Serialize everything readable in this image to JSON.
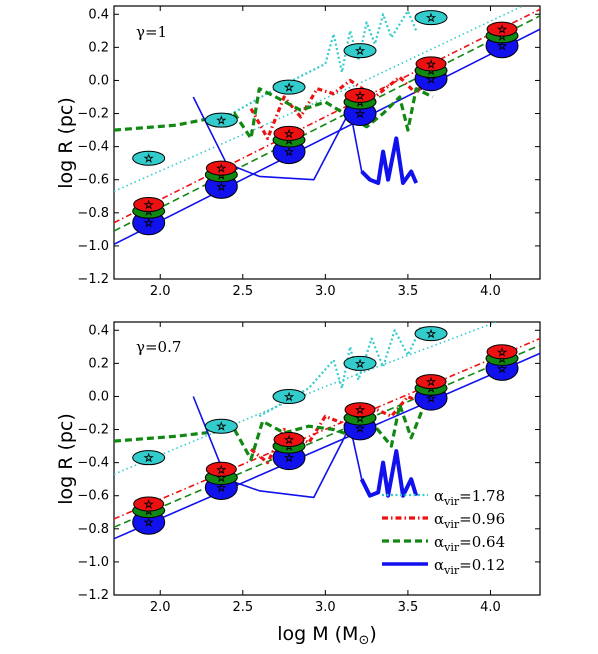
{
  "chart_data": {
    "type": "line",
    "figure_note": "",
    "xlabel_text": "log M (M",
    "xlabel_sub": "⊙",
    "xlabel_close": ")",
    "ylabel": "log R (pc)",
    "xlim": [
      1.72,
      4.3
    ],
    "ylim": [
      -1.2,
      0.45
    ],
    "xticks": [
      "2.0",
      "2.5",
      "3.0",
      "3.5",
      "4.0"
    ],
    "yticks": [
      "0.4",
      "0.2",
      "0.0",
      "−0.2",
      "−0.4",
      "−0.6",
      "−0.8",
      "−1.0",
      "−1.2"
    ],
    "legend": [
      {
        "symbol": "α",
        "sub": "vir",
        "value": "=1.78",
        "color": "#33cccc",
        "style": "dotted"
      },
      {
        "symbol": "α",
        "sub": "vir",
        "value": "=0.96",
        "color": "#ee1111",
        "style": "dashdot"
      },
      {
        "symbol": "α",
        "sub": "vir",
        "value": "=0.64",
        "color": "#118811",
        "style": "dashed"
      },
      {
        "symbol": "α",
        "sub": "vir",
        "value": "=0.12",
        "color": "#1111ee",
        "style": "solid"
      }
    ],
    "panels": [
      {
        "annotation": "γ=1",
        "markers": {
          "cyan": [
            [
              1.93,
              -0.47
            ],
            [
              2.37,
              -0.24
            ],
            [
              2.78,
              -0.04
            ],
            [
              3.21,
              0.18
            ],
            [
              3.64,
              0.38
            ]
          ],
          "red": [
            [
              1.93,
              -0.75
            ],
            [
              2.37,
              -0.53
            ],
            [
              2.78,
              -0.32
            ],
            [
              3.21,
              -0.09
            ],
            [
              3.64,
              0.1
            ],
            [
              4.07,
              0.31
            ]
          ],
          "green": [
            [
              1.93,
              -0.79
            ],
            [
              2.37,
              -0.57
            ],
            [
              2.78,
              -0.36
            ],
            [
              3.21,
              -0.13
            ],
            [
              3.64,
              0.06
            ],
            [
              4.07,
              0.27
            ]
          ],
          "blue": [
            [
              1.93,
              -0.86
            ],
            [
              2.37,
              -0.64
            ],
            [
              2.78,
              -0.43
            ],
            [
              3.21,
              -0.2
            ],
            [
              3.64,
              0.01
            ],
            [
              4.07,
              0.21
            ]
          ]
        },
        "fits": {
          "cyan": [
            [
              1.72,
              -0.67
            ],
            [
              3.2,
              -0.02
            ],
            [
              4.3,
              0.5
            ]
          ],
          "red": [
            [
              1.72,
              -0.86
            ],
            [
              4.3,
              0.43
            ]
          ],
          "green": [
            [
              1.72,
              -0.91
            ],
            [
              4.3,
              0.39
            ]
          ],
          "blue": [
            [
              1.72,
              -0.99
            ],
            [
              4.3,
              0.31
            ]
          ]
        },
        "curves": {
          "cyan": [
            [
              2.4,
              -0.22
            ],
            [
              2.7,
              -0.05
            ],
            [
              3.0,
              0.1
            ],
            [
              3.05,
              0.28
            ],
            [
              3.1,
              0.05
            ],
            [
              3.15,
              0.3
            ],
            [
              3.2,
              0.12
            ],
            [
              3.25,
              0.35
            ],
            [
              3.3,
              0.22
            ],
            [
              3.35,
              0.4
            ],
            [
              3.4,
              0.26
            ],
            [
              3.5,
              0.42
            ],
            [
              3.55,
              0.3
            ]
          ],
          "red": [
            [
              2.55,
              -0.17
            ],
            [
              2.65,
              -0.35
            ],
            [
              2.75,
              -0.1
            ],
            [
              2.85,
              -0.22
            ],
            [
              2.95,
              -0.05
            ],
            [
              3.05,
              -0.08
            ],
            [
              3.15,
              0.0
            ],
            [
              3.3,
              -0.1
            ],
            [
              3.45,
              0.02
            ],
            [
              3.55,
              -0.08
            ],
            [
              3.65,
              0.08
            ]
          ],
          "green": [
            [
              1.72,
              -0.3
            ],
            [
              2.1,
              -0.27
            ],
            [
              2.45,
              -0.2
            ],
            [
              2.55,
              -0.35
            ],
            [
              2.6,
              -0.05
            ],
            [
              2.7,
              -0.1
            ],
            [
              2.85,
              -0.18
            ],
            [
              3.0,
              -0.13
            ],
            [
              3.15,
              -0.22
            ],
            [
              3.25,
              -0.28
            ],
            [
              3.35,
              -0.2
            ],
            [
              3.45,
              -0.1
            ],
            [
              3.5,
              -0.3
            ],
            [
              3.55,
              -0.05
            ],
            [
              3.65,
              -0.1
            ]
          ],
          "blue": [
            [
              2.2,
              -0.1
            ],
            [
              2.4,
              -0.5
            ],
            [
              2.6,
              -0.58
            ],
            [
              2.93,
              -0.6
            ],
            [
              3.15,
              -0.18
            ],
            [
              3.22,
              -0.55
            ],
            [
              3.27,
              -0.6
            ],
            [
              3.32,
              -0.62
            ],
            [
              3.35,
              -0.43
            ],
            [
              3.38,
              -0.6
            ],
            [
              3.43,
              -0.35
            ],
            [
              3.47,
              -0.62
            ],
            [
              3.52,
              -0.55
            ],
            [
              3.55,
              -0.62
            ]
          ]
        }
      },
      {
        "annotation": "γ=0.7",
        "markers": {
          "cyan": [
            [
              1.93,
              -0.37
            ],
            [
              2.37,
              -0.18
            ],
            [
              2.78,
              0.0
            ],
            [
              3.21,
              0.2
            ],
            [
              3.64,
              0.38
            ]
          ],
          "red": [
            [
              1.93,
              -0.65
            ],
            [
              2.37,
              -0.44
            ],
            [
              2.78,
              -0.26
            ],
            [
              3.21,
              -0.08
            ],
            [
              3.64,
              0.09
            ],
            [
              4.07,
              0.27
            ]
          ],
          "green": [
            [
              1.93,
              -0.69
            ],
            [
              2.37,
              -0.49
            ],
            [
              2.78,
              -0.3
            ],
            [
              3.21,
              -0.13
            ],
            [
              3.64,
              0.05
            ],
            [
              4.07,
              0.23
            ]
          ],
          "blue": [
            [
              1.93,
              -0.76
            ],
            [
              2.37,
              -0.55
            ],
            [
              2.78,
              -0.37
            ],
            [
              3.21,
              -0.19
            ],
            [
              3.64,
              -0.01
            ],
            [
              4.07,
              0.17
            ]
          ]
        },
        "fits": {
          "cyan": [
            [
              1.72,
              -0.47
            ],
            [
              3.0,
              0.06
            ],
            [
              4.3,
              0.55
            ]
          ],
          "red": [
            [
              1.72,
              -0.74
            ],
            [
              4.3,
              0.35
            ]
          ],
          "green": [
            [
              1.72,
              -0.79
            ],
            [
              4.3,
              0.31
            ]
          ],
          "blue": [
            [
              1.72,
              -0.86
            ],
            [
              4.3,
              0.26
            ]
          ]
        },
        "curves": {
          "cyan": [
            [
              2.6,
              -0.12
            ],
            [
              2.9,
              0.05
            ],
            [
              3.05,
              0.22
            ],
            [
              3.1,
              0.05
            ],
            [
              3.15,
              0.3
            ],
            [
              3.2,
              0.1
            ],
            [
              3.28,
              0.35
            ],
            [
              3.35,
              0.18
            ],
            [
              3.42,
              0.4
            ],
            [
              3.5,
              0.25
            ],
            [
              3.58,
              0.42
            ]
          ],
          "red": [
            [
              2.55,
              -0.32
            ],
            [
              2.65,
              -0.4
            ],
            [
              2.75,
              -0.2
            ],
            [
              2.9,
              -0.28
            ],
            [
              3.0,
              -0.12
            ],
            [
              3.15,
              -0.18
            ],
            [
              3.25,
              -0.05
            ],
            [
              3.4,
              -0.12
            ],
            [
              3.5,
              0.0
            ],
            [
              3.6,
              -0.05
            ],
            [
              3.7,
              0.1
            ]
          ],
          "green": [
            [
              1.72,
              -0.27
            ],
            [
              2.1,
              -0.24
            ],
            [
              2.45,
              -0.2
            ],
            [
              2.55,
              -0.38
            ],
            [
              2.62,
              -0.15
            ],
            [
              2.75,
              -0.22
            ],
            [
              2.9,
              -0.18
            ],
            [
              3.05,
              -0.2
            ],
            [
              3.2,
              -0.25
            ],
            [
              3.3,
              -0.18
            ],
            [
              3.4,
              -0.3
            ],
            [
              3.45,
              -0.05
            ],
            [
              3.52,
              -0.25
            ],
            [
              3.6,
              -0.05
            ]
          ],
          "blue": [
            [
              2.2,
              0.0
            ],
            [
              2.4,
              -0.5
            ],
            [
              2.6,
              -0.57
            ],
            [
              2.93,
              -0.61
            ],
            [
              3.15,
              -0.18
            ],
            [
              3.22,
              -0.5
            ],
            [
              3.27,
              -0.6
            ],
            [
              3.32,
              -0.58
            ],
            [
              3.35,
              -0.4
            ],
            [
              3.38,
              -0.6
            ],
            [
              3.43,
              -0.33
            ],
            [
              3.47,
              -0.6
            ],
            [
              3.52,
              -0.5
            ],
            [
              3.55,
              -0.6
            ]
          ]
        }
      }
    ]
  }
}
